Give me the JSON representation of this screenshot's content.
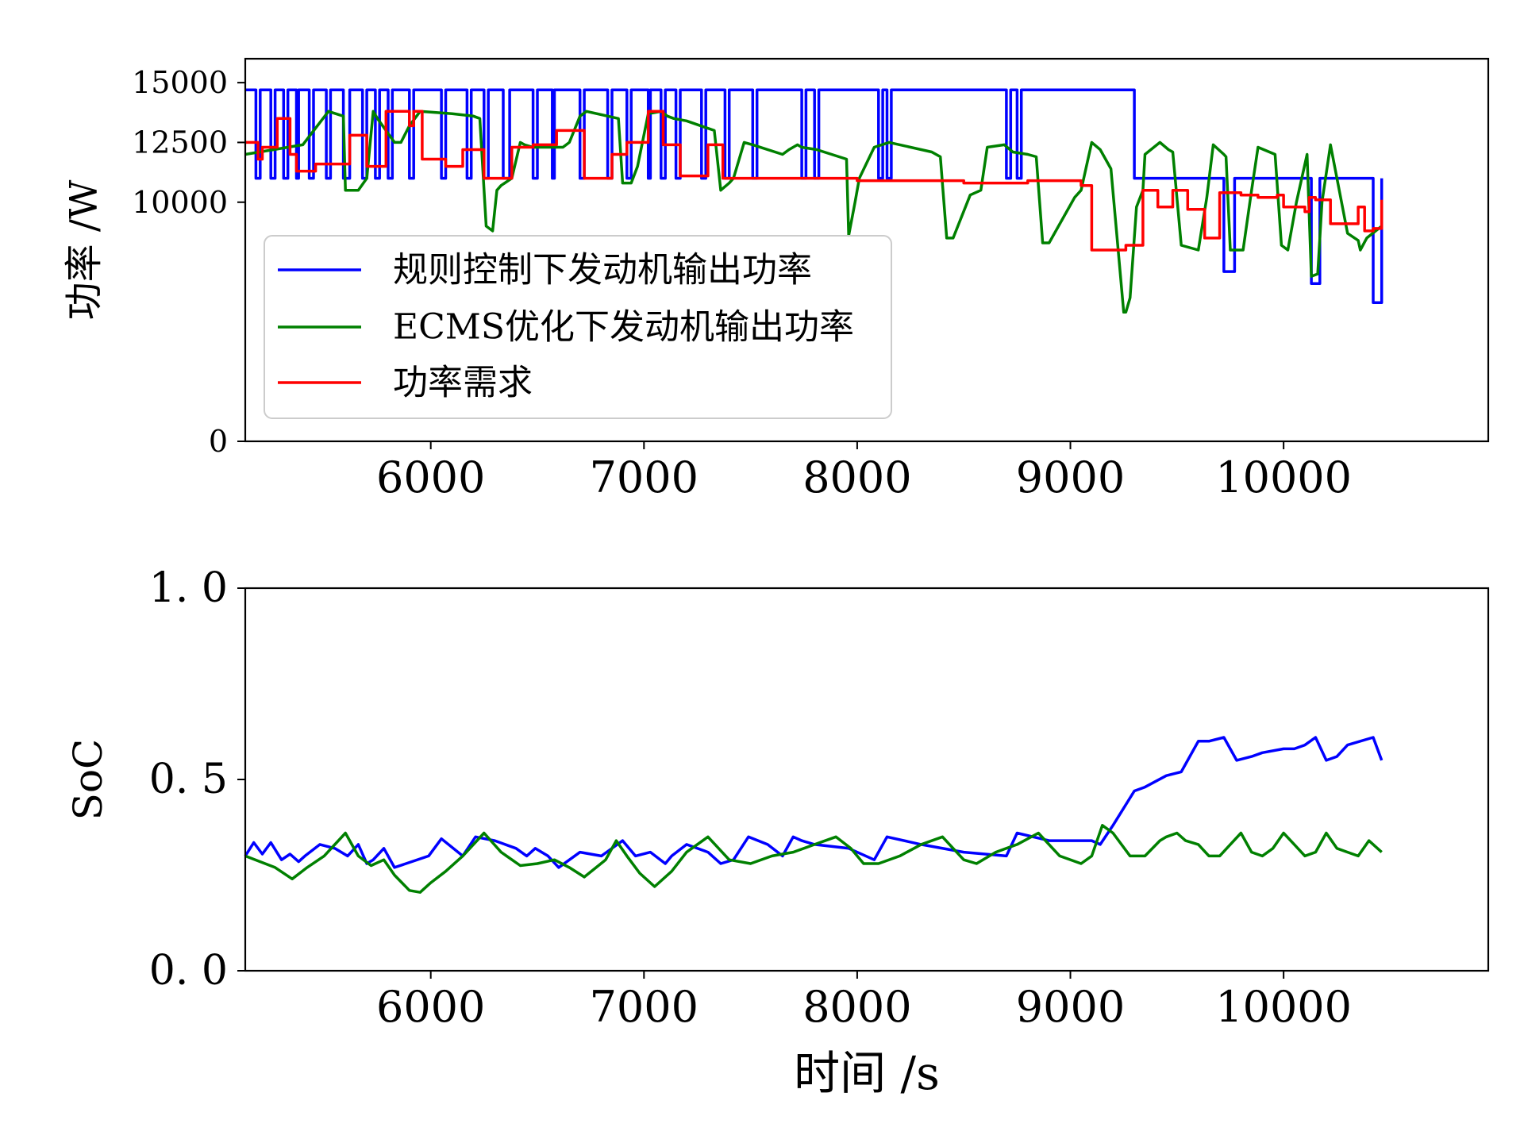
{
  "chart_data": [
    {
      "type": "line",
      "ylabel": "功率 /W",
      "xlabel": "",
      "xlim": [
        5130,
        10960
      ],
      "ylim": [
        0,
        16000
      ],
      "xticks": [
        6000,
        7000,
        8000,
        9000,
        10000
      ],
      "yticks": [
        0,
        10000,
        12500,
        15000
      ],
      "legend": {
        "placement": "lower-left"
      },
      "series": [
        {
          "name": "规则控制下发动机输出功率",
          "color": "#0000ff",
          "step": true,
          "x": [
            5130,
            5180,
            5200,
            5250,
            5270,
            5310,
            5330,
            5370,
            5380,
            5430,
            5450,
            5510,
            5530,
            5590,
            5620,
            5680,
            5700,
            5740,
            5760,
            5800,
            5820,
            5900,
            5920,
            6050,
            6070,
            6170,
            6190,
            6250,
            6270,
            6340,
            6370,
            6480,
            6500,
            6570,
            6580,
            6700,
            6720,
            6830,
            6850,
            6920,
            6940,
            7020,
            7030,
            7080,
            7100,
            7150,
            7170,
            7270,
            7290,
            7380,
            7400,
            7510,
            7530,
            7740,
            7760,
            7800,
            7820,
            8100,
            8120,
            8140,
            8160,
            8700,
            8720,
            8750,
            8770,
            9300,
            9330,
            9700,
            9720,
            9750,
            9770,
            10110,
            10130,
            10150,
            10170,
            10400,
            10420,
            10440,
            10460
          ],
          "y": [
            14700,
            11000,
            14700,
            11000,
            14700,
            11000,
            14700,
            11000,
            14700,
            11000,
            14700,
            11000,
            14700,
            11000,
            14700,
            11000,
            14700,
            11000,
            14700,
            11000,
            14700,
            11000,
            14700,
            11000,
            14700,
            11000,
            14700,
            11000,
            14700,
            11000,
            14700,
            11000,
            14700,
            11000,
            14700,
            11000,
            14700,
            11000,
            14700,
            11000,
            14700,
            11000,
            14700,
            11000,
            14700,
            11000,
            14700,
            11000,
            14700,
            11000,
            14700,
            11000,
            14700,
            11000,
            14700,
            11000,
            14700,
            11000,
            14700,
            11000,
            14700,
            11000,
            14700,
            11000,
            14700,
            11000,
            11000,
            11000,
            7100,
            7100,
            11000,
            11000,
            6600,
            6600,
            11000,
            11000,
            5800,
            5800,
            11000
          ]
        },
        {
          "name": "ECMS优化下发动机输出功率",
          "color": "#008000",
          "step": false,
          "x": [
            5130,
            5400,
            5520,
            5590,
            5600,
            5660,
            5700,
            5730,
            5750,
            5830,
            5860,
            5900,
            5950,
            6100,
            6200,
            6230,
            6260,
            6290,
            6310,
            6330,
            6380,
            6420,
            6440,
            6480,
            6620,
            6650,
            6700,
            6730,
            6880,
            6900,
            6940,
            6970,
            7020,
            7080,
            7110,
            7140,
            7200,
            7330,
            7360,
            7400,
            7420,
            7470,
            7510,
            7650,
            7680,
            7720,
            7740,
            7810,
            7950,
            7960,
            7990,
            8010,
            8080,
            8150,
            8350,
            8390,
            8420,
            8450,
            8530,
            8580,
            8610,
            8690,
            8730,
            8800,
            8840,
            8870,
            8900,
            9020,
            9050,
            9100,
            9140,
            9190,
            9250,
            9260,
            9280,
            9310,
            9340,
            9350,
            9420,
            9460,
            9480,
            9520,
            9600,
            9640,
            9670,
            9720,
            9730,
            9750,
            9810,
            9850,
            9880,
            9960,
            9990,
            10020,
            10060,
            10110,
            10130,
            10160,
            10180,
            10220,
            10300,
            10350,
            10360,
            10390,
            10460
          ],
          "y": [
            12000,
            12400,
            13800,
            13600,
            10500,
            10500,
            11000,
            13800,
            13500,
            12500,
            12500,
            13200,
            13800,
            13700,
            13600,
            13500,
            9000,
            8800,
            10500,
            10700,
            11000,
            12500,
            12400,
            12300,
            12300,
            12500,
            13600,
            13800,
            13500,
            10800,
            10800,
            11500,
            13700,
            13800,
            13600,
            13500,
            13400,
            13000,
            10500,
            10800,
            11000,
            12500,
            12400,
            12000,
            12200,
            12400,
            12300,
            12200,
            11800,
            8600,
            10000,
            11000,
            12300,
            12500,
            12100,
            11900,
            8500,
            8500,
            10300,
            10500,
            12300,
            12400,
            12100,
            12000,
            11900,
            8300,
            8300,
            10200,
            10500,
            12500,
            12200,
            11400,
            5400,
            5400,
            6000,
            9800,
            10500,
            12000,
            12500,
            12200,
            12100,
            8200,
            8000,
            10200,
            12400,
            12000,
            11900,
            8000,
            8000,
            10500,
            12300,
            12000,
            8200,
            8000,
            10000,
            12000,
            6900,
            7000,
            10000,
            12400,
            8700,
            8400,
            8000,
            8500,
            9000
          ]
        },
        {
          "name": "功率需求",
          "color": "#ff0000",
          "step": true,
          "x": [
            5130,
            5190,
            5210,
            5280,
            5340,
            5370,
            5460,
            5620,
            5700,
            5790,
            5900,
            5920,
            5960,
            6070,
            6150,
            6250,
            6380,
            6480,
            6590,
            6720,
            6850,
            6920,
            7020,
            7090,
            7170,
            7300,
            7370,
            7500,
            7700,
            8000,
            8200,
            8500,
            8800,
            9050,
            9100,
            9200,
            9260,
            9340,
            9410,
            9480,
            9550,
            9630,
            9700,
            9800,
            9880,
            9970,
            10000,
            10100,
            10120,
            10150,
            10220,
            10350,
            10380,
            10420,
            10460
          ],
          "y": [
            12500,
            11800,
            12300,
            13500,
            12000,
            11300,
            11600,
            12800,
            11500,
            13800,
            13200,
            13800,
            11800,
            11500,
            12200,
            11000,
            12300,
            12400,
            13000,
            11000,
            12000,
            12500,
            13800,
            12400,
            11100,
            12400,
            11000,
            11000,
            11000,
            10900,
            10900,
            10800,
            10900,
            10700,
            8000,
            8000,
            8200,
            10500,
            9800,
            10500,
            9700,
            8500,
            10400,
            10300,
            10200,
            10300,
            9800,
            9600,
            10200,
            10100,
            9100,
            9800,
            8800,
            8900,
            10100
          ]
        }
      ]
    },
    {
      "type": "line",
      "ylabel": "SoC",
      "xlabel": "时间 /s",
      "xlim": [
        5130,
        10960
      ],
      "ylim": [
        0.0,
        1.0
      ],
      "xticks": [
        6000,
        7000,
        8000,
        9000,
        10000
      ],
      "yticks": [
        0.0,
        0.5,
        1.0
      ],
      "ytick_labels": [
        "0. 0",
        "0. 5",
        "1. 0"
      ],
      "series": [
        {
          "name": "规则控制下发动机输出功率",
          "color": "#0000ff",
          "x": [
            5130,
            5170,
            5210,
            5250,
            5300,
            5340,
            5380,
            5410,
            5480,
            5550,
            5610,
            5660,
            5700,
            5730,
            5780,
            5830,
            5990,
            6050,
            6150,
            6210,
            6300,
            6400,
            6450,
            6490,
            6550,
            6600,
            6700,
            6800,
            6900,
            6960,
            7030,
            7100,
            7130,
            7200,
            7300,
            7360,
            7420,
            7490,
            7580,
            7650,
            7700,
            7740,
            7800,
            7960,
            8080,
            8140,
            8300,
            8500,
            8700,
            8750,
            8900,
            9000,
            9100,
            9140,
            9200,
            9300,
            9350,
            9450,
            9520,
            9600,
            9650,
            9720,
            9780,
            9850,
            9900,
            10000,
            10050,
            10100,
            10150,
            10200,
            10250,
            10300,
            10420,
            10460
          ],
          "y": [
            0.3,
            0.335,
            0.305,
            0.335,
            0.29,
            0.305,
            0.285,
            0.3,
            0.33,
            0.32,
            0.3,
            0.33,
            0.28,
            0.29,
            0.32,
            0.27,
            0.3,
            0.345,
            0.3,
            0.35,
            0.34,
            0.32,
            0.3,
            0.32,
            0.3,
            0.27,
            0.31,
            0.3,
            0.34,
            0.3,
            0.31,
            0.28,
            0.3,
            0.33,
            0.31,
            0.28,
            0.29,
            0.35,
            0.33,
            0.3,
            0.35,
            0.34,
            0.33,
            0.32,
            0.29,
            0.35,
            0.33,
            0.31,
            0.3,
            0.36,
            0.34,
            0.34,
            0.34,
            0.33,
            0.38,
            0.47,
            0.48,
            0.51,
            0.52,
            0.6,
            0.6,
            0.61,
            0.55,
            0.56,
            0.57,
            0.58,
            0.58,
            0.59,
            0.61,
            0.55,
            0.56,
            0.59,
            0.61,
            0.55
          ]
        },
        {
          "name": "ECMS优化下发动机输出功率",
          "color": "#008000",
          "x": [
            5130,
            5200,
            5270,
            5350,
            5420,
            5500,
            5600,
            5660,
            5720,
            5780,
            5830,
            5900,
            5950,
            6000,
            6070,
            6150,
            6250,
            6330,
            6420,
            6500,
            6580,
            6650,
            6720,
            6820,
            6870,
            6920,
            6980,
            7050,
            7130,
            7200,
            7300,
            7400,
            7500,
            7600,
            7700,
            7800,
            7900,
            7970,
            8030,
            8100,
            8200,
            8300,
            8400,
            8450,
            8500,
            8560,
            8650,
            8750,
            8850,
            8950,
            9050,
            9100,
            9150,
            9200,
            9280,
            9350,
            9420,
            9450,
            9500,
            9540,
            9600,
            9650,
            9700,
            9750,
            9800,
            9850,
            9900,
            9950,
            10000,
            10050,
            10100,
            10150,
            10200,
            10250,
            10300,
            10350,
            10400,
            10460
          ],
          "y": [
            0.3,
            0.285,
            0.27,
            0.24,
            0.27,
            0.3,
            0.36,
            0.3,
            0.275,
            0.29,
            0.25,
            0.21,
            0.205,
            0.23,
            0.26,
            0.3,
            0.36,
            0.31,
            0.275,
            0.28,
            0.29,
            0.27,
            0.245,
            0.29,
            0.34,
            0.3,
            0.255,
            0.22,
            0.26,
            0.31,
            0.35,
            0.29,
            0.28,
            0.3,
            0.31,
            0.33,
            0.35,
            0.32,
            0.28,
            0.28,
            0.3,
            0.33,
            0.35,
            0.32,
            0.29,
            0.28,
            0.31,
            0.33,
            0.36,
            0.3,
            0.28,
            0.3,
            0.38,
            0.36,
            0.3,
            0.3,
            0.34,
            0.35,
            0.36,
            0.34,
            0.33,
            0.3,
            0.3,
            0.33,
            0.36,
            0.31,
            0.3,
            0.32,
            0.36,
            0.33,
            0.3,
            0.31,
            0.36,
            0.32,
            0.31,
            0.3,
            0.34,
            0.31
          ]
        }
      ]
    }
  ]
}
